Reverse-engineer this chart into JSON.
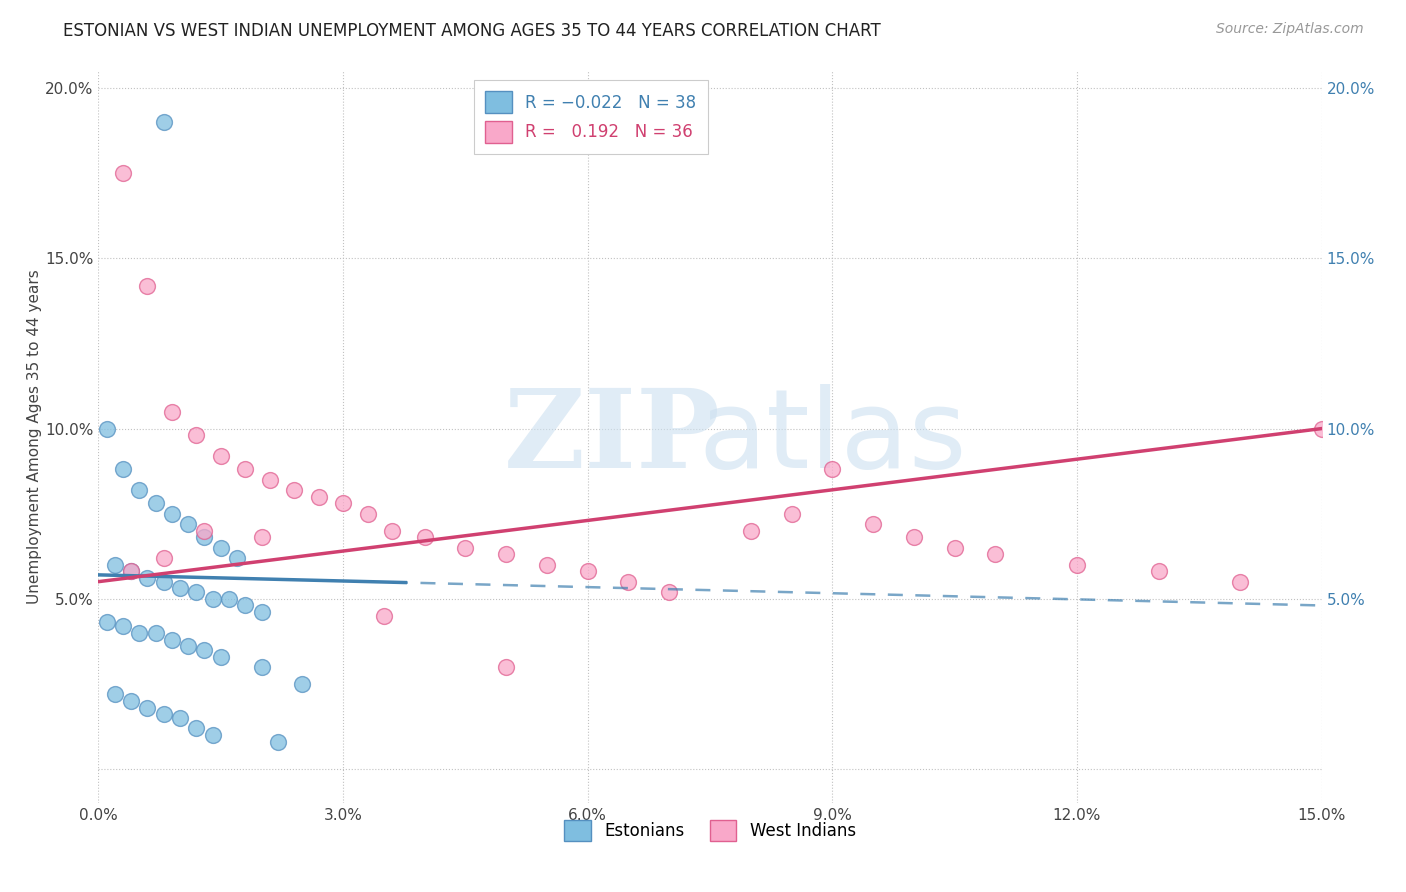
{
  "title": "ESTONIAN VS WEST INDIAN UNEMPLOYMENT AMONG AGES 35 TO 44 YEARS CORRELATION CHART",
  "source": "Source: ZipAtlas.com",
  "ylabel": "Unemployment Among Ages 35 to 44 years",
  "xlim": [
    0.0,
    0.15
  ],
  "ylim": [
    -0.01,
    0.205
  ],
  "xticks": [
    0.0,
    0.03,
    0.06,
    0.09,
    0.12,
    0.15
  ],
  "yticks": [
    0.0,
    0.05,
    0.1,
    0.15,
    0.2
  ],
  "xticklabels": [
    "0.0%",
    "3.0%",
    "6.0%",
    "9.0%",
    "12.0%",
    "15.0%"
  ],
  "yticklabels_left": [
    "",
    "5.0%",
    "10.0%",
    "15.0%",
    "20.0%"
  ],
  "yticklabels_right": [
    "",
    "5.0%",
    "10.0%",
    "15.0%",
    "20.0%"
  ],
  "estonian_color": "#7fbee0",
  "westindian_color": "#f9a8c9",
  "estonian_edge_color": "#5590c0",
  "westindian_edge_color": "#e06090",
  "estonian_line_color": "#4080b0",
  "westindian_line_color": "#d04070",
  "estonian_x": [
    0.008,
    0.001,
    0.003,
    0.005,
    0.007,
    0.009,
    0.011,
    0.013,
    0.015,
    0.017,
    0.002,
    0.004,
    0.006,
    0.008,
    0.01,
    0.012,
    0.014,
    0.016,
    0.018,
    0.02,
    0.001,
    0.003,
    0.005,
    0.007,
    0.009,
    0.011,
    0.013,
    0.015,
    0.02,
    0.025,
    0.002,
    0.004,
    0.006,
    0.008,
    0.01,
    0.012,
    0.014,
    0.022
  ],
  "estonian_y": [
    0.19,
    0.1,
    0.088,
    0.082,
    0.078,
    0.075,
    0.072,
    0.068,
    0.065,
    0.062,
    0.06,
    0.058,
    0.056,
    0.055,
    0.053,
    0.052,
    0.05,
    0.05,
    0.048,
    0.046,
    0.043,
    0.042,
    0.04,
    0.04,
    0.038,
    0.036,
    0.035,
    0.033,
    0.03,
    0.025,
    0.022,
    0.02,
    0.018,
    0.016,
    0.015,
    0.012,
    0.01,
    0.008
  ],
  "westindian_x": [
    0.003,
    0.006,
    0.009,
    0.012,
    0.015,
    0.018,
    0.021,
    0.024,
    0.027,
    0.03,
    0.033,
    0.036,
    0.04,
    0.045,
    0.05,
    0.055,
    0.06,
    0.065,
    0.07,
    0.08,
    0.085,
    0.09,
    0.095,
    0.1,
    0.105,
    0.11,
    0.12,
    0.13,
    0.14,
    0.15,
    0.004,
    0.008,
    0.013,
    0.02,
    0.035,
    0.05
  ],
  "westindian_y": [
    0.175,
    0.142,
    0.105,
    0.098,
    0.092,
    0.088,
    0.085,
    0.082,
    0.08,
    0.078,
    0.075,
    0.07,
    0.068,
    0.065,
    0.063,
    0.06,
    0.058,
    0.055,
    0.052,
    0.07,
    0.075,
    0.088,
    0.072,
    0.068,
    0.065,
    0.063,
    0.06,
    0.058,
    0.055,
    0.1,
    0.058,
    0.062,
    0.07,
    0.068,
    0.045,
    0.03
  ],
  "est_line_solid_end": 0.04,
  "wi_line_start": 0.0,
  "wi_line_end": 0.15
}
